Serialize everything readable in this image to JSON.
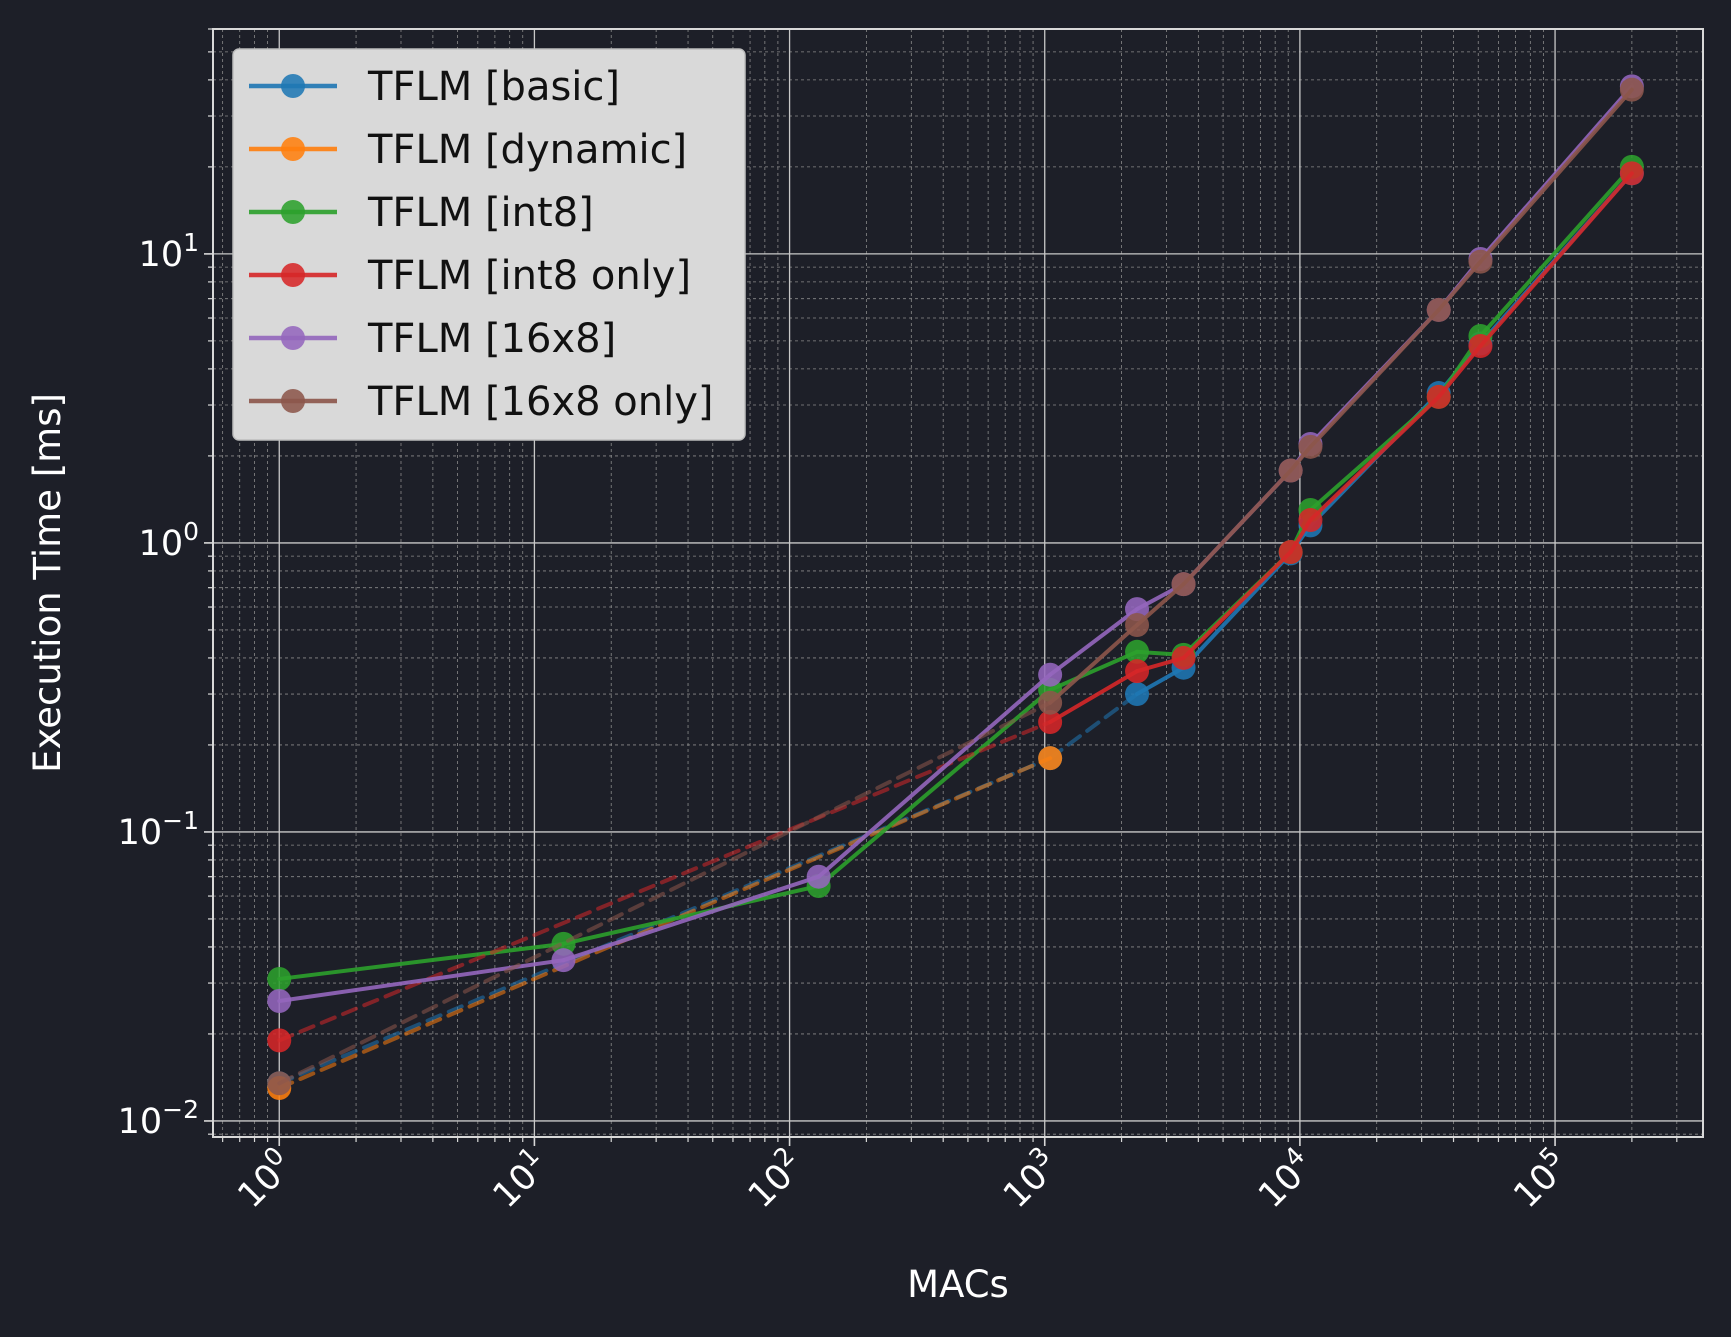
{
  "colors": {
    "background": "#1d1f28",
    "grid_major": "#c8c8c8",
    "grid_minor": "#8a8a8a",
    "axis_text": "#ffffff",
    "legend_background": "#d9d9d9"
  },
  "chart_data": {
    "type": "line",
    "xlabel": "MACs",
    "ylabel": "Execution Time [ms]",
    "x_scale": "log",
    "y_scale": "log",
    "xlim": [
      0.55,
      380000
    ],
    "ylim": [
      0.0088,
      60
    ],
    "grid": true,
    "legend_position": "top-left",
    "x_ticks": [
      {
        "value": 1,
        "base": "10",
        "exp": "0"
      },
      {
        "value": 10,
        "base": "10",
        "exp": "1"
      },
      {
        "value": 100,
        "base": "10",
        "exp": "2"
      },
      {
        "value": 1000,
        "base": "10",
        "exp": "3"
      },
      {
        "value": 10000,
        "base": "10",
        "exp": "4"
      },
      {
        "value": 100000,
        "base": "10",
        "exp": "5"
      }
    ],
    "y_ticks": [
      {
        "value": 0.01,
        "base": "10",
        "exp": "−2"
      },
      {
        "value": 0.1,
        "base": "10",
        "exp": "−1"
      },
      {
        "value": 1,
        "base": "10",
        "exp": "0"
      },
      {
        "value": 10,
        "base": "10",
        "exp": "1"
      }
    ],
    "series": [
      {
        "name": "TFLM [basic]",
        "color": "#1f77b4",
        "points": [
          [
            1,
            0.0135
          ],
          [
            1050,
            0.18
          ],
          [
            2300,
            0.3
          ],
          [
            3500,
            0.37
          ],
          [
            9200,
            0.92
          ],
          [
            11000,
            1.15
          ],
          [
            35000,
            3.3
          ],
          [
            51000,
            4.9
          ],
          [
            200000,
            19
          ]
        ],
        "missing_dash": [
          0,
          1
        ]
      },
      {
        "name": "TFLM [dynamic]",
        "color": "#ff7f0e",
        "points": [
          [
            1,
            0.013
          ],
          [
            1050,
            0.18
          ]
        ],
        "missing_dash": [
          0
        ]
      },
      {
        "name": "TFLM [int8]",
        "color": "#2ca02c",
        "points": [
          [
            1,
            0.031
          ],
          [
            13,
            0.041
          ],
          [
            130,
            0.065
          ],
          [
            1050,
            0.31
          ],
          [
            2300,
            0.42
          ],
          [
            3500,
            0.41
          ],
          [
            9200,
            0.93
          ],
          [
            11000,
            1.3
          ],
          [
            35000,
            3.2
          ],
          [
            51000,
            5.2
          ],
          [
            200000,
            20
          ]
        ],
        "missing_dash": []
      },
      {
        "name": "TFLM [int8 only]",
        "color": "#d62728",
        "points": [
          [
            1,
            0.019
          ],
          [
            1050,
            0.24
          ],
          [
            2300,
            0.36
          ],
          [
            3500,
            0.4
          ],
          [
            9200,
            0.93
          ],
          [
            11000,
            1.2
          ],
          [
            35000,
            3.2
          ],
          [
            51000,
            4.8
          ],
          [
            200000,
            19
          ]
        ],
        "missing_dash": [
          0
        ]
      },
      {
        "name": "TFLM [16x8]",
        "color": "#9467bd",
        "points": [
          [
            1,
            0.026
          ],
          [
            13,
            0.036
          ],
          [
            130,
            0.07
          ],
          [
            1050,
            0.35
          ],
          [
            2300,
            0.59
          ],
          [
            3500,
            0.72
          ],
          [
            9200,
            1.78
          ],
          [
            11000,
            2.2
          ],
          [
            35000,
            6.4
          ],
          [
            51000,
            9.6
          ],
          [
            200000,
            38
          ]
        ],
        "missing_dash": []
      },
      {
        "name": "TFLM [16x8 only]",
        "color": "#8c564b",
        "points": [
          [
            1,
            0.0135
          ],
          [
            1050,
            0.28
          ],
          [
            2300,
            0.52
          ],
          [
            3500,
            0.72
          ],
          [
            9200,
            1.78
          ],
          [
            11000,
            2.15
          ],
          [
            35000,
            6.4
          ],
          [
            51000,
            9.4
          ],
          [
            200000,
            37
          ]
        ],
        "missing_dash": [
          0
        ]
      }
    ]
  }
}
